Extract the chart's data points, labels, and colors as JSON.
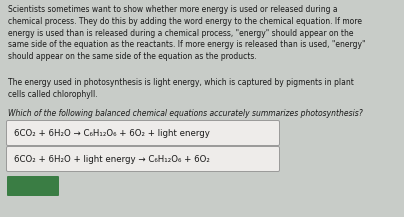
{
  "background_color": "#c8ccc8",
  "text_color": "#1a1a1a",
  "paragraph1": "Scientists sometimes want to show whether more energy is used or released during a\nchemical process. They do this by adding the word energy to the chemical equation. If more\nenergy is used than is released during a chemical process, \"energy\" should appear on the\nsame side of the equation as the reactants. If more energy is released than is used, \"energy\"\nshould appear on the same side of the equation as the products.",
  "paragraph2": "The energy used in photosynthesis is light energy, which is captured by pigments in plant\ncells called chlorophyll.",
  "paragraph3": "Which of the following balanced chemical equations accurately summarizes photosynthesis?",
  "box1_text": "6CO₂ + 6H₂O → C₆H₁₂O₆ + 6O₂ + light energy",
  "box2_text": "6CO₂ + 6H₂O + light energy → C₆H₁₂O₆ + 6O₂",
  "box_bg": "#eeecea",
  "box_border": "#999999",
  "button_color": "#3a7d44",
  "font_size_body": 5.5,
  "font_size_box": 6.2,
  "fig_width": 4.04,
  "fig_height": 2.17,
  "dpi": 100
}
